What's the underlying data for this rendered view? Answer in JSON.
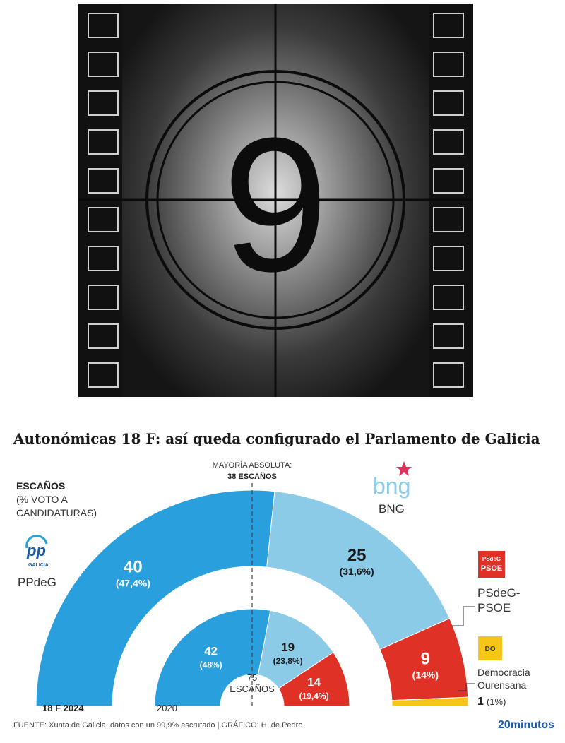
{
  "photo": {
    "countdown_number": "9"
  },
  "chart_data": {
    "type": "semicircle-parliament",
    "title": "Autonómicas 18 F: así queda configurado el Parlamento de Galicia",
    "legend_heading": "ESCAÑOS",
    "legend_subheading_1": "(% VOTO A",
    "legend_subheading_2": "CANDIDATURAS)",
    "majority_label_1": "MAYORÍA ABSOLUTA:",
    "majority_label_2": "38 ESCAÑOS",
    "majority_seats": 38,
    "total_seats": 75,
    "total_number": "75",
    "total_label": "ESCAÑOS",
    "outer_label": "18 F 2024",
    "inner_label": "2020",
    "series": [
      {
        "name": "18 F 2024",
        "parties": [
          {
            "party": "PPdeG",
            "seats": 40,
            "seats_text": "40",
            "pct": 47.4,
            "pct_text": "(47,4%)",
            "color": "#2a9fdd"
          },
          {
            "party": "BNG",
            "seats": 25,
            "seats_text": "25",
            "pct": 31.6,
            "pct_text": "(31,6%)",
            "color": "#8ccbe8"
          },
          {
            "party": "PSdeG-PSOE",
            "seats": 9,
            "seats_text": "9",
            "pct": 14,
            "pct_text": "(14%)",
            "color": "#e03127"
          },
          {
            "party": "Democracia Ourensana",
            "seats": 1,
            "seats_text": "1",
            "pct": 1,
            "pct_text": "(1%)",
            "color": "#f5c518"
          }
        ]
      },
      {
        "name": "2020",
        "parties": [
          {
            "party": "PPdeG",
            "seats": 42,
            "seats_text": "42",
            "pct": 48,
            "pct_text": "(48%)",
            "color": "#2a9fdd"
          },
          {
            "party": "BNG",
            "seats": 19,
            "seats_text": "19",
            "pct": 23.8,
            "pct_text": "(23,8%)",
            "color": "#8ccbe8"
          },
          {
            "party": "PSdeG-PSOE",
            "seats": 14,
            "seats_text": "14",
            "pct": 19.4,
            "pct_text": "(19,4%)",
            "color": "#e03127"
          }
        ]
      }
    ]
  },
  "parties": {
    "pp": {
      "logo_text": "pp",
      "logo_sub": "GALICIA",
      "name": "PPdeG"
    },
    "bng": {
      "logo_text": "bng",
      "name": "BNG"
    },
    "psoe": {
      "logo_text_1": "PSdeG",
      "logo_text_2": "PSOE",
      "name_1": "PSdeG-",
      "name_2": "PSOE"
    },
    "do": {
      "logo_text": "DO",
      "name_1": "Democracia",
      "name_2": "Ourensana",
      "seats_text": "1",
      "pct_text": "(1%)"
    }
  },
  "footer": {
    "source": "FUENTE: Xunta de Galicia, datos con un 99,9% escrutado   |  GRÁFICO: H. de Pedro",
    "brand": "20minutos"
  }
}
